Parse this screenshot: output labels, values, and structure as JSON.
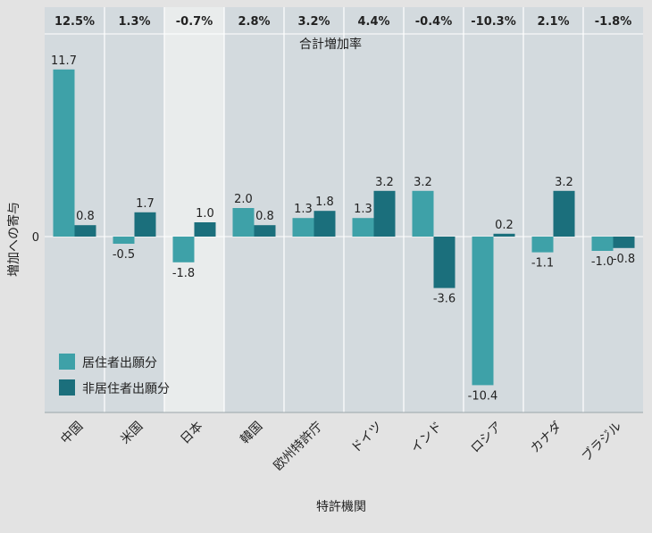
{
  "chart_data": {
    "type": "bar",
    "categories": [
      "中国",
      "米国",
      "日本",
      "韓国",
      "欧州特許庁",
      "ドイツ",
      "インド",
      "ロシア",
      "カナダ",
      "ブラジル"
    ],
    "series": [
      {
        "name": "居住者出願分",
        "values": [
          11.7,
          -0.5,
          -1.8,
          2.0,
          1.3,
          1.3,
          3.2,
          -10.4,
          -1.1,
          -1.0
        ],
        "color": "#3ea1a8"
      },
      {
        "name": "非居住者出願分",
        "values": [
          0.8,
          1.7,
          1.0,
          0.8,
          1.8,
          3.2,
          -3.6,
          0.2,
          3.2,
          -0.8
        ],
        "color": "#1b6f7c"
      }
    ],
    "total_growth": {
      "label": "合計増加率",
      "values": [
        "12.5%",
        "1.3%",
        "-0.7%",
        "2.8%",
        "3.2%",
        "4.4%",
        "-0.4%",
        "-10.3%",
        "2.1%",
        "-1.8%"
      ]
    },
    "data_labels": {
      "series_0": [
        "11.7",
        "-0.5",
        "-1.8",
        "2.0",
        "1.3",
        "1.3",
        "3.2",
        "-10.4",
        "-1.1",
        "-1.0"
      ],
      "series_1": [
        "0.8",
        "1.7",
        "1.0",
        "0.8",
        "1.8",
        "3.2",
        "-3.6",
        "0.2",
        "3.2",
        "-0.8"
      ]
    },
    "highlight_category": "日本",
    "xlabel": "特許機関",
    "ylabel": "増加への寄与",
    "y_zero_label": "0",
    "ylim": [
      -12.5,
      14.0
    ],
    "legend_position": "bottom-left",
    "grid": false
  },
  "colors": {
    "page_background": "#e3e3e3",
    "plot_background": "#d3dade",
    "highlight_background": "#e9ecec",
    "divider": "#ffffff"
  }
}
